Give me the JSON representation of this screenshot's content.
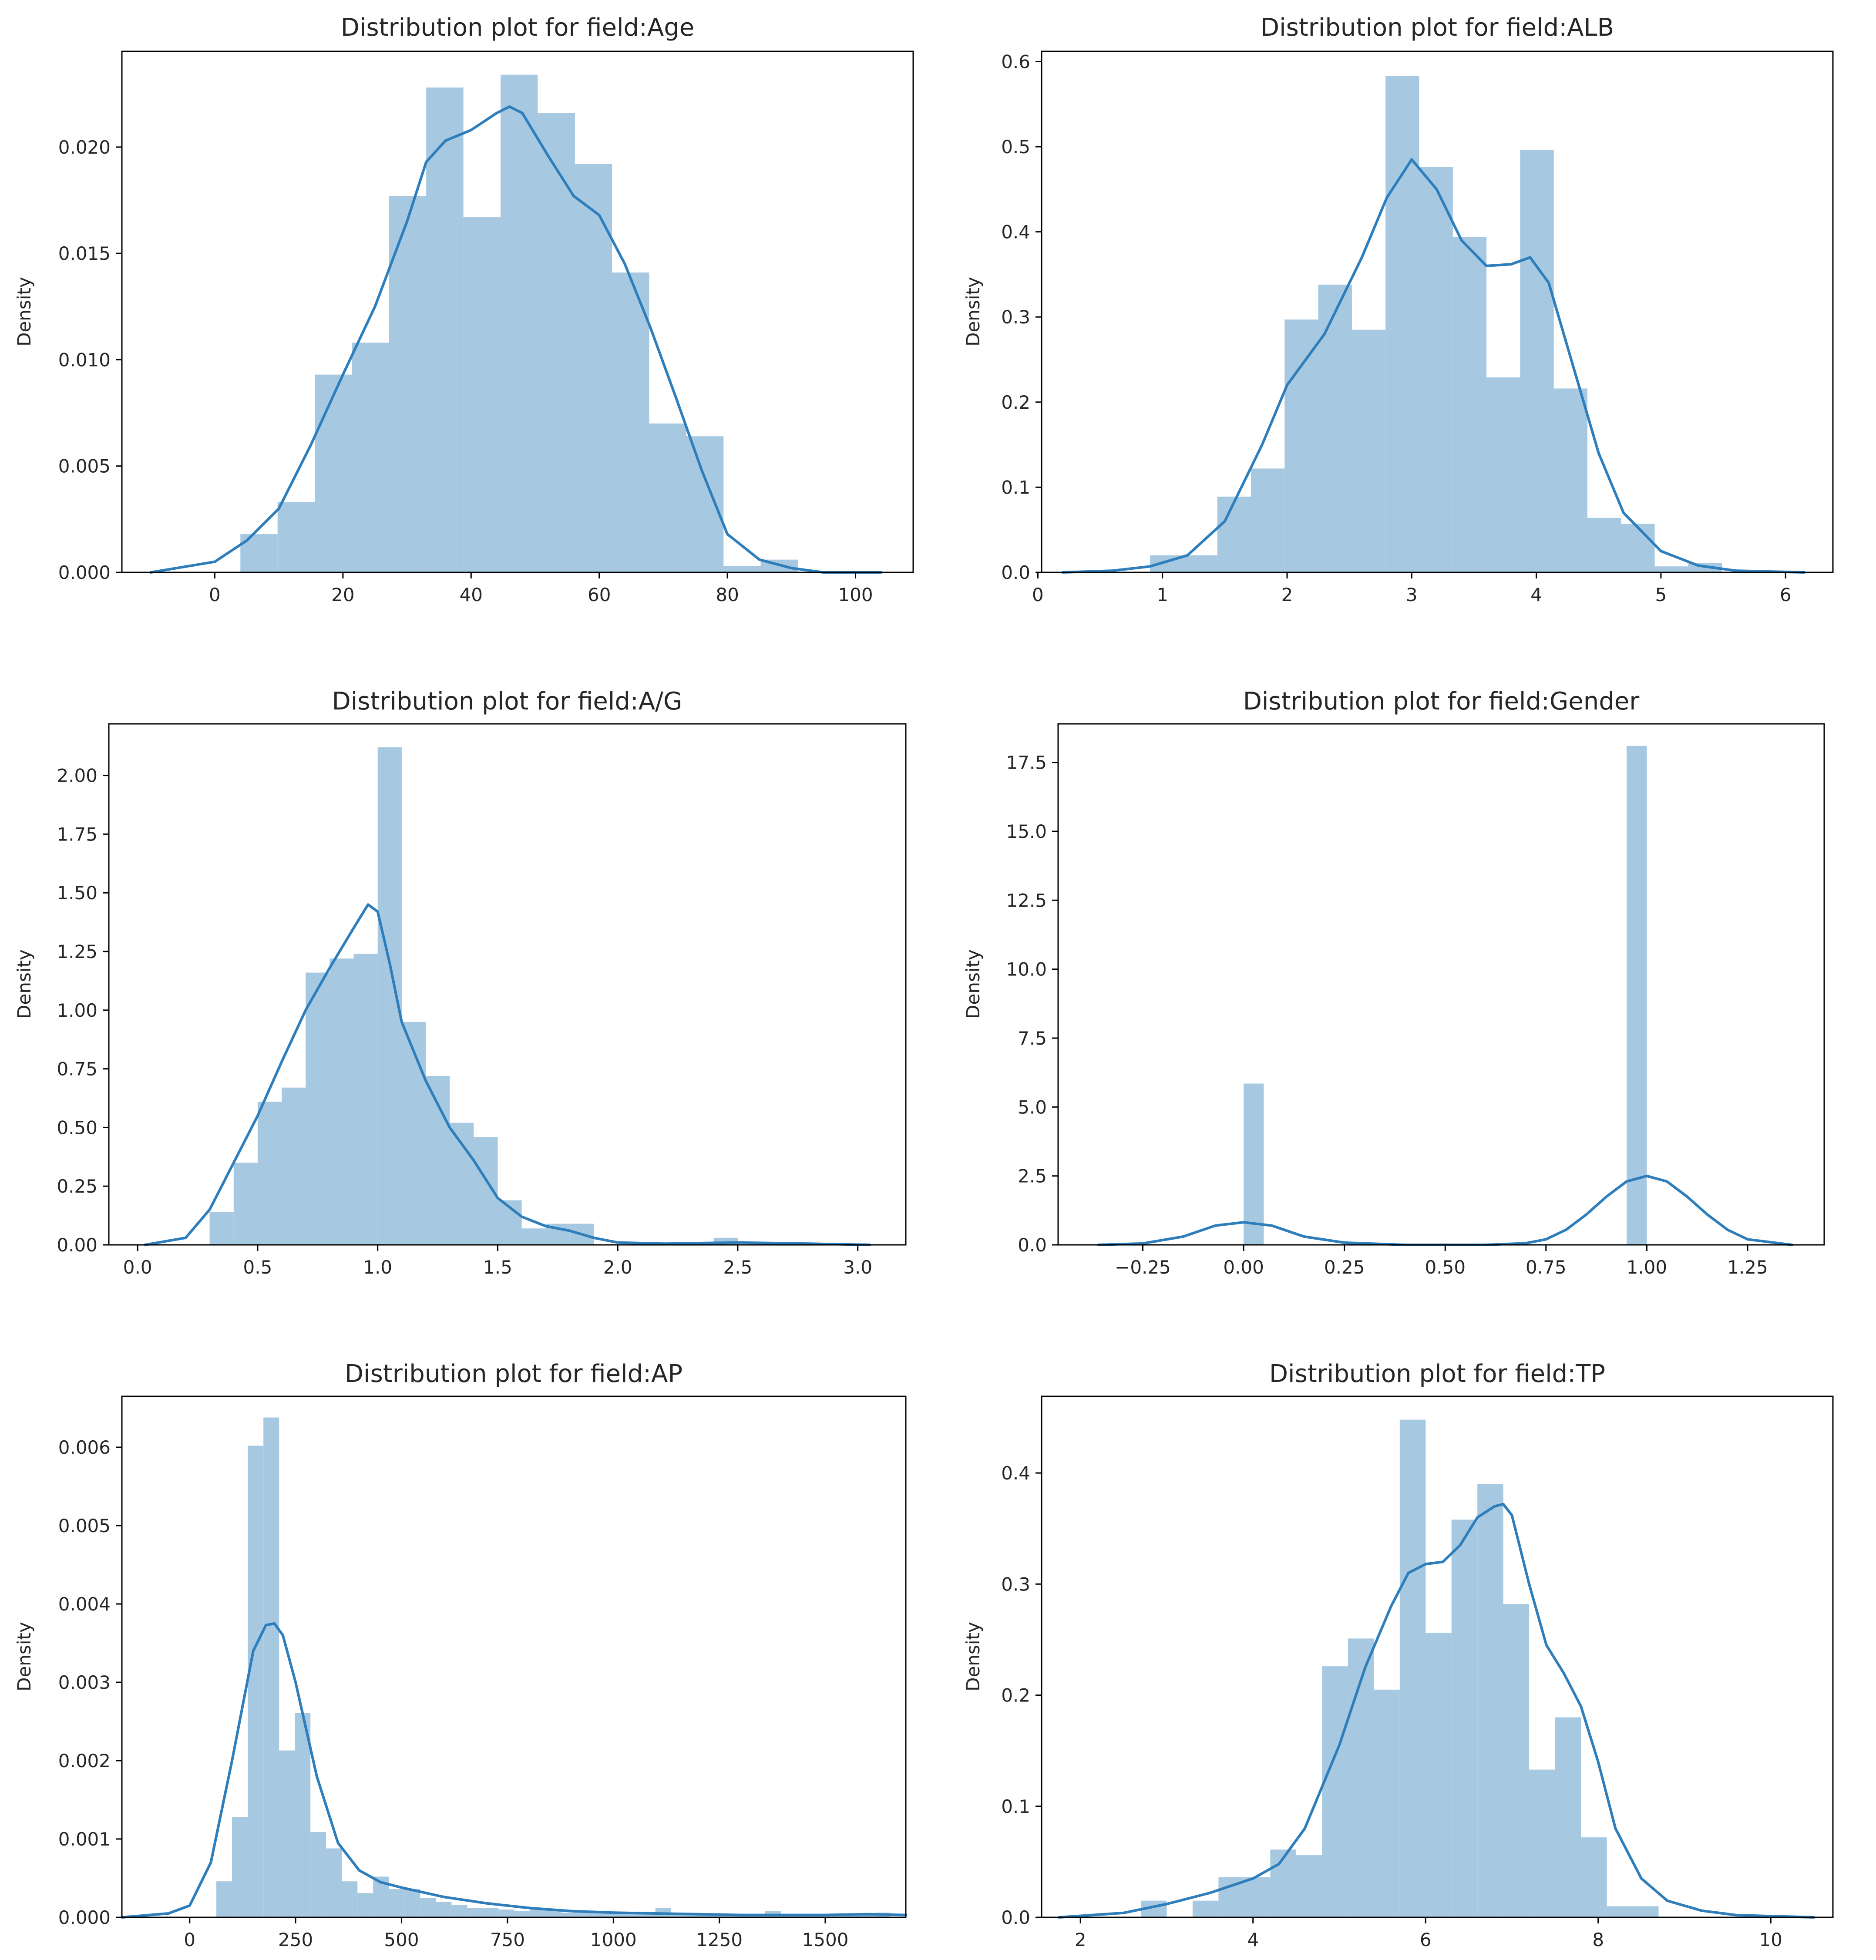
{
  "colors": {
    "bar": "#a6c8e0",
    "kde": "#2e7ebc",
    "axis": "#000000",
    "text": "#262626",
    "background": "#ffffff"
  },
  "chart_data": [
    {
      "type": "histogram",
      "title": "Distribution plot for field:Age",
      "xlabel": "",
      "ylabel": "Density",
      "xlim": [
        -14.5,
        109
      ],
      "ylim": [
        0,
        0.0245
      ],
      "xticks": [
        0,
        20,
        40,
        60,
        80,
        100
      ],
      "xtick_labels": [
        "0",
        "20",
        "40",
        "60",
        "80",
        "100"
      ],
      "yticks": [
        0.0,
        0.005,
        0.01,
        0.015,
        0.02
      ],
      "ytick_labels": [
        "0.000",
        "0.005",
        "0.010",
        "0.015",
        "0.020"
      ],
      "bins": [
        {
          "x0": 4,
          "x1": 9.8,
          "y": 0.0018
        },
        {
          "x0": 9.8,
          "x1": 15.6,
          "y": 0.0033
        },
        {
          "x0": 15.6,
          "x1": 21.4,
          "y": 0.0093
        },
        {
          "x0": 21.4,
          "x1": 27.2,
          "y": 0.0108
        },
        {
          "x0": 27.2,
          "x1": 33.0,
          "y": 0.0177
        },
        {
          "x0": 33.0,
          "x1": 38.8,
          "y": 0.0228
        },
        {
          "x0": 38.8,
          "x1": 44.6,
          "y": 0.0167
        },
        {
          "x0": 44.6,
          "x1": 50.4,
          "y": 0.0234
        },
        {
          "x0": 50.4,
          "x1": 56.2,
          "y": 0.0216
        },
        {
          "x0": 56.2,
          "x1": 62.0,
          "y": 0.0192
        },
        {
          "x0": 62.0,
          "x1": 67.8,
          "y": 0.0141
        },
        {
          "x0": 67.8,
          "x1": 73.6,
          "y": 0.007
        },
        {
          "x0": 73.6,
          "x1": 79.4,
          "y": 0.0064
        },
        {
          "x0": 79.4,
          "x1": 85.2,
          "y": 0.0003
        },
        {
          "x0": 85.2,
          "x1": 91.0,
          "y": 0.0006
        }
      ],
      "kde": {
        "x": [
          -10,
          0,
          5,
          10,
          15,
          20,
          25,
          30,
          33,
          36,
          40,
          44,
          46,
          48,
          52,
          56,
          60,
          64,
          68,
          72,
          76,
          80,
          85,
          90,
          95,
          104
        ],
        "y": [
          0.0,
          0.0005,
          0.0015,
          0.003,
          0.006,
          0.0093,
          0.0125,
          0.0165,
          0.0193,
          0.0203,
          0.0208,
          0.0216,
          0.0219,
          0.0216,
          0.0196,
          0.0177,
          0.0168,
          0.0145,
          0.0115,
          0.0082,
          0.0048,
          0.0018,
          0.0006,
          0.0002,
          0.0,
          0.0
        ]
      }
    },
    {
      "type": "histogram",
      "title": "Distribution plot for field:ALB",
      "xlabel": "",
      "ylabel": "Density",
      "xlim": [
        0.03,
        6.38
      ],
      "ylim": [
        0,
        0.612
      ],
      "xticks": [
        0,
        1,
        2,
        3,
        4,
        5,
        6
      ],
      "xtick_labels": [
        "0",
        "1",
        "2",
        "3",
        "4",
        "5",
        "6"
      ],
      "yticks": [
        0.0,
        0.1,
        0.2,
        0.3,
        0.4,
        0.5,
        0.6
      ],
      "ytick_labels": [
        "0.0",
        "0.1",
        "0.2",
        "0.3",
        "0.4",
        "0.5",
        "0.6"
      ],
      "bins": [
        {
          "x0": 0.9,
          "x1": 1.17,
          "y": 0.02
        },
        {
          "x0": 1.17,
          "x1": 1.44,
          "y": 0.02
        },
        {
          "x0": 1.44,
          "x1": 1.71,
          "y": 0.089
        },
        {
          "x0": 1.71,
          "x1": 1.98,
          "y": 0.122
        },
        {
          "x0": 1.98,
          "x1": 2.25,
          "y": 0.297
        },
        {
          "x0": 2.25,
          "x1": 2.52,
          "y": 0.338
        },
        {
          "x0": 2.52,
          "x1": 2.79,
          "y": 0.285
        },
        {
          "x0": 2.79,
          "x1": 3.06,
          "y": 0.583
        },
        {
          "x0": 3.06,
          "x1": 3.33,
          "y": 0.476
        },
        {
          "x0": 3.33,
          "x1": 3.6,
          "y": 0.394
        },
        {
          "x0": 3.6,
          "x1": 3.87,
          "y": 0.229
        },
        {
          "x0": 3.87,
          "x1": 4.14,
          "y": 0.496
        },
        {
          "x0": 4.14,
          "x1": 4.41,
          "y": 0.216
        },
        {
          "x0": 4.41,
          "x1": 4.68,
          "y": 0.064
        },
        {
          "x0": 4.68,
          "x1": 4.95,
          "y": 0.057
        },
        {
          "x0": 4.95,
          "x1": 5.22,
          "y": 0.007
        },
        {
          "x0": 5.22,
          "x1": 5.49,
          "y": 0.011
        }
      ],
      "kde": {
        "x": [
          0.2,
          0.6,
          0.9,
          1.2,
          1.5,
          1.8,
          2.0,
          2.3,
          2.6,
          2.8,
          3.0,
          3.2,
          3.4,
          3.6,
          3.8,
          3.95,
          4.1,
          4.3,
          4.5,
          4.7,
          5.0,
          5.3,
          5.6,
          6.15
        ],
        "y": [
          0.0,
          0.002,
          0.007,
          0.02,
          0.06,
          0.15,
          0.22,
          0.28,
          0.37,
          0.44,
          0.485,
          0.45,
          0.39,
          0.36,
          0.362,
          0.37,
          0.34,
          0.24,
          0.14,
          0.07,
          0.025,
          0.008,
          0.002,
          0.0
        ]
      }
    },
    {
      "type": "histogram",
      "title": "Distribution plot for field:A/G",
      "xlabel": "",
      "ylabel": "Density",
      "xlim": [
        -0.12,
        3.2
      ],
      "ylim": [
        0,
        2.22
      ],
      "xticks": [
        0.0,
        0.5,
        1.0,
        1.5,
        2.0,
        2.5,
        3.0
      ],
      "xtick_labels": [
        "0.0",
        "0.5",
        "1.0",
        "1.5",
        "2.0",
        "2.5",
        "3.0"
      ],
      "yticks": [
        0.0,
        0.25,
        0.5,
        0.75,
        1.0,
        1.25,
        1.5,
        1.75,
        2.0
      ],
      "ytick_labels": [
        "0.00",
        "0.25",
        "0.50",
        "0.75",
        "1.00",
        "1.25",
        "1.50",
        "1.75",
        "2.00"
      ],
      "bins": [
        {
          "x0": 0.3,
          "x1": 0.4,
          "y": 0.14
        },
        {
          "x0": 0.4,
          "x1": 0.5,
          "y": 0.35
        },
        {
          "x0": 0.5,
          "x1": 0.6,
          "y": 0.61
        },
        {
          "x0": 0.6,
          "x1": 0.7,
          "y": 0.67
        },
        {
          "x0": 0.7,
          "x1": 0.8,
          "y": 1.16
        },
        {
          "x0": 0.8,
          "x1": 0.9,
          "y": 1.22
        },
        {
          "x0": 0.9,
          "x1": 1.0,
          "y": 1.24
        },
        {
          "x0": 1.0,
          "x1": 1.1,
          "y": 2.12
        },
        {
          "x0": 1.1,
          "x1": 1.2,
          "y": 0.95
        },
        {
          "x0": 1.2,
          "x1": 1.3,
          "y": 0.72
        },
        {
          "x0": 1.3,
          "x1": 1.4,
          "y": 0.52
        },
        {
          "x0": 1.4,
          "x1": 1.5,
          "y": 0.46
        },
        {
          "x0": 1.5,
          "x1": 1.6,
          "y": 0.19
        },
        {
          "x0": 1.6,
          "x1": 1.7,
          "y": 0.07
        },
        {
          "x0": 1.7,
          "x1": 1.8,
          "y": 0.09
        },
        {
          "x0": 1.8,
          "x1": 1.9,
          "y": 0.09
        },
        {
          "x0": 2.4,
          "x1": 2.5,
          "y": 0.03
        }
      ],
      "kde": {
        "x": [
          0.03,
          0.2,
          0.3,
          0.4,
          0.5,
          0.6,
          0.7,
          0.8,
          0.9,
          0.96,
          1.0,
          1.05,
          1.1,
          1.2,
          1.3,
          1.4,
          1.5,
          1.6,
          1.7,
          1.8,
          1.9,
          2.0,
          2.2,
          2.5,
          2.8,
          3.05
        ],
        "y": [
          0.0,
          0.03,
          0.15,
          0.35,
          0.55,
          0.78,
          1.0,
          1.18,
          1.35,
          1.45,
          1.42,
          1.2,
          0.95,
          0.7,
          0.5,
          0.36,
          0.2,
          0.12,
          0.08,
          0.06,
          0.03,
          0.01,
          0.005,
          0.01,
          0.005,
          0.0
        ]
      }
    },
    {
      "type": "histogram",
      "title": "Distribution plot for field:Gender",
      "xlabel": "",
      "ylabel": "Density",
      "xlim": [
        -0.46,
        1.44
      ],
      "ylim": [
        0,
        18.9
      ],
      "xticks": [
        -0.25,
        0.0,
        0.25,
        0.5,
        0.75,
        1.0,
        1.25
      ],
      "xtick_labels": [
        "−0.25",
        "0.00",
        "0.25",
        "0.50",
        "0.75",
        "1.00",
        "1.25"
      ],
      "yticks": [
        0.0,
        2.5,
        5.0,
        7.5,
        10.0,
        12.5,
        15.0,
        17.5
      ],
      "ytick_labels": [
        "0.0",
        "2.5",
        "5.0",
        "7.5",
        "10.0",
        "12.5",
        "15.0",
        "17.5"
      ],
      "bins": [
        {
          "x0": 0.0,
          "x1": 0.05,
          "y": 5.85
        },
        {
          "x0": 0.95,
          "x1": 1.0,
          "y": 18.1
        }
      ],
      "kde": {
        "x": [
          -0.36,
          -0.25,
          -0.15,
          -0.07,
          0.0,
          0.07,
          0.15,
          0.25,
          0.4,
          0.6,
          0.7,
          0.75,
          0.8,
          0.85,
          0.9,
          0.95,
          1.0,
          1.05,
          1.1,
          1.15,
          1.2,
          1.25,
          1.36
        ],
        "y": [
          0.0,
          0.05,
          0.3,
          0.7,
          0.82,
          0.7,
          0.3,
          0.08,
          0.0,
          0.0,
          0.06,
          0.2,
          0.55,
          1.1,
          1.75,
          2.3,
          2.5,
          2.3,
          1.75,
          1.1,
          0.55,
          0.2,
          0.0
        ]
      }
    },
    {
      "type": "histogram",
      "title": "Distribution plot for field:AP",
      "xlabel": "",
      "ylabel": "Density",
      "xlim": [
        -160,
        1690
      ],
      "ylim": [
        0,
        0.00665
      ],
      "xticks": [
        0,
        250,
        500,
        750,
        1000,
        1250,
        1500
      ],
      "xtick_labels": [
        "0",
        "250",
        "500",
        "750",
        "1000",
        "1250",
        "1500"
      ],
      "yticks": [
        0.0,
        0.001,
        0.002,
        0.003,
        0.004,
        0.005,
        0.006
      ],
      "ytick_labels": [
        "0.000",
        "0.001",
        "0.002",
        "0.003",
        "0.004",
        "0.005",
        "0.006"
      ],
      "bins": [
        {
          "x0": 63,
          "x1": 100,
          "y": 0.00046
        },
        {
          "x0": 100,
          "x1": 137,
          "y": 0.00128
        },
        {
          "x0": 137,
          "x1": 174,
          "y": 0.00602
        },
        {
          "x0": 174,
          "x1": 211,
          "y": 0.00638
        },
        {
          "x0": 211,
          "x1": 248,
          "y": 0.00213
        },
        {
          "x0": 248,
          "x1": 285,
          "y": 0.00261
        },
        {
          "x0": 285,
          "x1": 322,
          "y": 0.00109
        },
        {
          "x0": 322,
          "x1": 359,
          "y": 0.00088
        },
        {
          "x0": 359,
          "x1": 396,
          "y": 0.00046
        },
        {
          "x0": 396,
          "x1": 433,
          "y": 0.00031
        },
        {
          "x0": 433,
          "x1": 470,
          "y": 0.00052
        },
        {
          "x0": 470,
          "x1": 507,
          "y": 0.00036
        },
        {
          "x0": 507,
          "x1": 544,
          "y": 0.00036
        },
        {
          "x0": 544,
          "x1": 581,
          "y": 0.00025
        },
        {
          "x0": 581,
          "x1": 618,
          "y": 0.0002
        },
        {
          "x0": 618,
          "x1": 655,
          "y": 0.00016
        },
        {
          "x0": 655,
          "x1": 692,
          "y": 0.00012
        },
        {
          "x0": 692,
          "x1": 729,
          "y": 0.00012
        },
        {
          "x0": 729,
          "x1": 766,
          "y": 0.0001
        },
        {
          "x0": 766,
          "x1": 803,
          "y": 8e-05
        },
        {
          "x0": 803,
          "x1": 840,
          "y": 0.0001
        },
        {
          "x0": 840,
          "x1": 877,
          "y": 0.0001
        },
        {
          "x0": 877,
          "x1": 914,
          "y": 6e-05
        },
        {
          "x0": 914,
          "x1": 951,
          "y": 6e-05
        },
        {
          "x0": 951,
          "x1": 988,
          "y": 5e-05
        },
        {
          "x0": 988,
          "x1": 1025,
          "y": 5e-05
        },
        {
          "x0": 1025,
          "x1": 1062,
          "y": 5e-05
        },
        {
          "x0": 1062,
          "x1": 1099,
          "y": 4e-05
        },
        {
          "x0": 1099,
          "x1": 1136,
          "y": 0.00012
        },
        {
          "x0": 1136,
          "x1": 1173,
          "y": 4e-05
        },
        {
          "x0": 1173,
          "x1": 1210,
          "y": 3e-05
        },
        {
          "x0": 1210,
          "x1": 1247,
          "y": 3e-05
        },
        {
          "x0": 1247,
          "x1": 1284,
          "y": 3e-05
        },
        {
          "x0": 1284,
          "x1": 1321,
          "y": 3e-05
        },
        {
          "x0": 1321,
          "x1": 1358,
          "y": 3e-05
        },
        {
          "x0": 1358,
          "x1": 1395,
          "y": 8e-05
        },
        {
          "x0": 1395,
          "x1": 1432,
          "y": 3e-05
        },
        {
          "x0": 1432,
          "x1": 1469,
          "y": 3e-05
        },
        {
          "x0": 1469,
          "x1": 1506,
          "y": 3e-05
        },
        {
          "x0": 1506,
          "x1": 1543,
          "y": 3e-05
        },
        {
          "x0": 1543,
          "x1": 1580,
          "y": 3e-05
        },
        {
          "x0": 1580,
          "x1": 1617,
          "y": 3e-05
        },
        {
          "x0": 1617,
          "x1": 1654,
          "y": 6e-05
        }
      ],
      "kde": {
        "x": [
          -160,
          -50,
          0,
          50,
          100,
          150,
          180,
          200,
          220,
          250,
          300,
          350,
          400,
          450,
          500,
          600,
          700,
          800,
          900,
          1000,
          1100,
          1200,
          1300,
          1400,
          1500,
          1600,
          1690
        ],
        "y": [
          0.0,
          5e-05,
          0.00015,
          0.0007,
          0.002,
          0.0034,
          0.00373,
          0.00375,
          0.0036,
          0.003,
          0.0018,
          0.00095,
          0.0006,
          0.00045,
          0.00038,
          0.00026,
          0.00018,
          0.00012,
          8e-05,
          6e-05,
          5e-05,
          4e-05,
          3e-05,
          3e-05,
          3e-05,
          4e-05,
          3e-05
        ]
      }
    },
    {
      "type": "histogram",
      "title": "Distribution plot for field:TP",
      "xlabel": "",
      "ylabel": "Density",
      "xlim": [
        1.55,
        10.72
      ],
      "ylim": [
        0,
        0.469
      ],
      "xticks": [
        2,
        4,
        6,
        8,
        10
      ],
      "xtick_labels": [
        "2",
        "4",
        "6",
        "8",
        "10"
      ],
      "yticks": [
        0.0,
        0.1,
        0.2,
        0.3,
        0.4
      ],
      "ytick_labels": [
        "0.0",
        "0.1",
        "0.2",
        "0.3",
        "0.4"
      ],
      "bins": [
        {
          "x0": 2.7,
          "x1": 3.0,
          "y": 0.015
        },
        {
          "x0": 3.3,
          "x1": 3.6,
          "y": 0.015
        },
        {
          "x0": 3.6,
          "x1": 3.9,
          "y": 0.036
        },
        {
          "x0": 3.9,
          "x1": 4.2,
          "y": 0.036
        },
        {
          "x0": 4.2,
          "x1": 4.5,
          "y": 0.061
        },
        {
          "x0": 4.5,
          "x1": 4.8,
          "y": 0.056
        },
        {
          "x0": 4.8,
          "x1": 5.1,
          "y": 0.226
        },
        {
          "x0": 5.1,
          "x1": 5.4,
          "y": 0.251
        },
        {
          "x0": 5.4,
          "x1": 5.7,
          "y": 0.205
        },
        {
          "x0": 5.7,
          "x1": 6.0,
          "y": 0.448
        },
        {
          "x0": 6.0,
          "x1": 6.3,
          "y": 0.256
        },
        {
          "x0": 6.3,
          "x1": 6.6,
          "y": 0.358
        },
        {
          "x0": 6.6,
          "x1": 6.9,
          "y": 0.39
        },
        {
          "x0": 6.9,
          "x1": 7.2,
          "y": 0.282
        },
        {
          "x0": 7.2,
          "x1": 7.5,
          "y": 0.133
        },
        {
          "x0": 7.5,
          "x1": 7.8,
          "y": 0.18
        },
        {
          "x0": 7.8,
          "x1": 8.1,
          "y": 0.072
        },
        {
          "x0": 8.1,
          "x1": 8.4,
          "y": 0.01
        },
        {
          "x0": 8.4,
          "x1": 8.7,
          "y": 0.01
        }
      ],
      "kde": {
        "x": [
          1.75,
          2.5,
          3.0,
          3.5,
          4.0,
          4.3,
          4.6,
          5.0,
          5.3,
          5.6,
          5.8,
          6.0,
          6.2,
          6.4,
          6.6,
          6.8,
          6.9,
          7.0,
          7.2,
          7.4,
          7.6,
          7.8,
          8.0,
          8.2,
          8.5,
          8.8,
          9.2,
          9.6,
          10.5
        ],
        "y": [
          0.0,
          0.004,
          0.012,
          0.022,
          0.035,
          0.048,
          0.08,
          0.155,
          0.225,
          0.28,
          0.31,
          0.318,
          0.32,
          0.335,
          0.36,
          0.37,
          0.372,
          0.362,
          0.3,
          0.245,
          0.22,
          0.19,
          0.14,
          0.08,
          0.035,
          0.015,
          0.006,
          0.002,
          0.0
        ]
      }
    }
  ]
}
